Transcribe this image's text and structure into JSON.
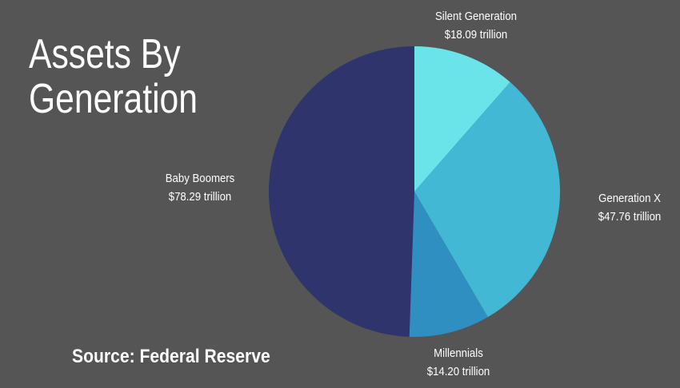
{
  "title_lines": [
    "Assets By",
    "Generation"
  ],
  "source": "Source: Federal Reserve",
  "colors": {
    "background": "#555555",
    "Silent Generation": "#6ae4e8",
    "Generation X": "#43b8d4",
    "Millennials": "#2f8fc0",
    "Baby Boomers": "#2f346c"
  },
  "chart_data": {
    "type": "pie",
    "title": "Assets By Generation",
    "unit": "trillion USD",
    "slices": [
      {
        "label": "Silent Generation",
        "value": 18.09,
        "value_label": "$18.09 trillion"
      },
      {
        "label": "Generation X",
        "value": 47.76,
        "value_label": "$47.76 trillion"
      },
      {
        "label": "Millennials",
        "value": 14.2,
        "value_label": "$14.20 trillion"
      },
      {
        "label": "Baby Boomers",
        "value": 78.29,
        "value_label": "$78.29 trillion"
      }
    ]
  }
}
